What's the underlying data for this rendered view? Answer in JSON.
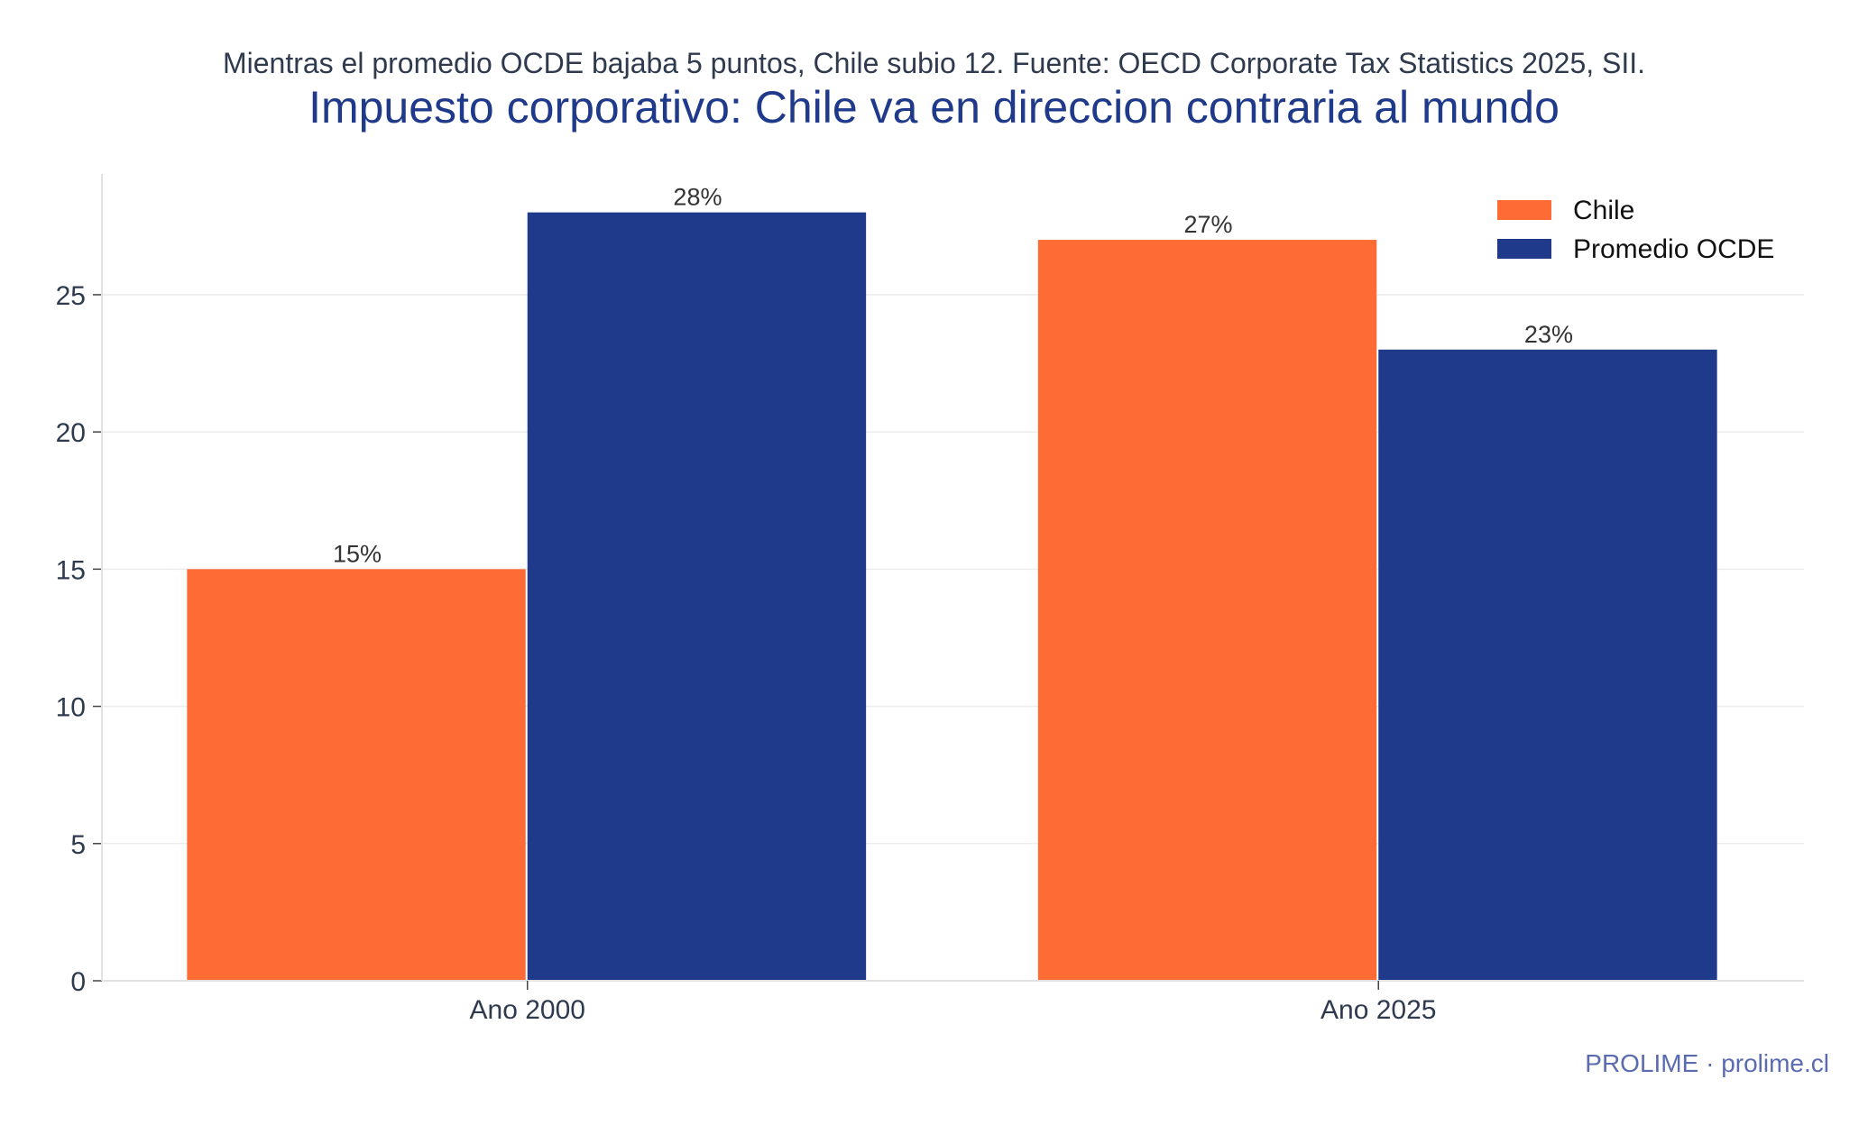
{
  "subtitle": "Mientras el promedio OCDE bajaba 5 puntos, Chile subio 12. Fuente: OECD Corporate Tax Statistics 2025, SII.",
  "title": "Impuesto corporativo: Chile va en direccion contraria al mundo",
  "footer": "PROLIME · prolime.cl",
  "chart_data": {
    "type": "bar",
    "title": "Impuesto corporativo: Chile va en direccion contraria al mundo",
    "subtitle": "Mientras el promedio OCDE bajaba 5 puntos, Chile subio 12. Fuente: OECD Corporate Tax Statistics 2025, SII.",
    "categories": [
      "Ano 2000",
      "Ano 2025"
    ],
    "series": [
      {
        "name": "Chile",
        "values": [
          15,
          27
        ],
        "labels": [
          "15%",
          "27%"
        ],
        "color": "#ff6b35"
      },
      {
        "name": "Promedio OCDE",
        "values": [
          28,
          23
        ],
        "labels": [
          "28%",
          "23%"
        ],
        "color": "#1f3a8a"
      }
    ],
    "xlabel": "",
    "ylabel": "",
    "ylim": [
      0,
      29.4
    ],
    "yticks": [
      0,
      5,
      10,
      15,
      20,
      25
    ],
    "grid": true,
    "legend_position": "top-right"
  }
}
